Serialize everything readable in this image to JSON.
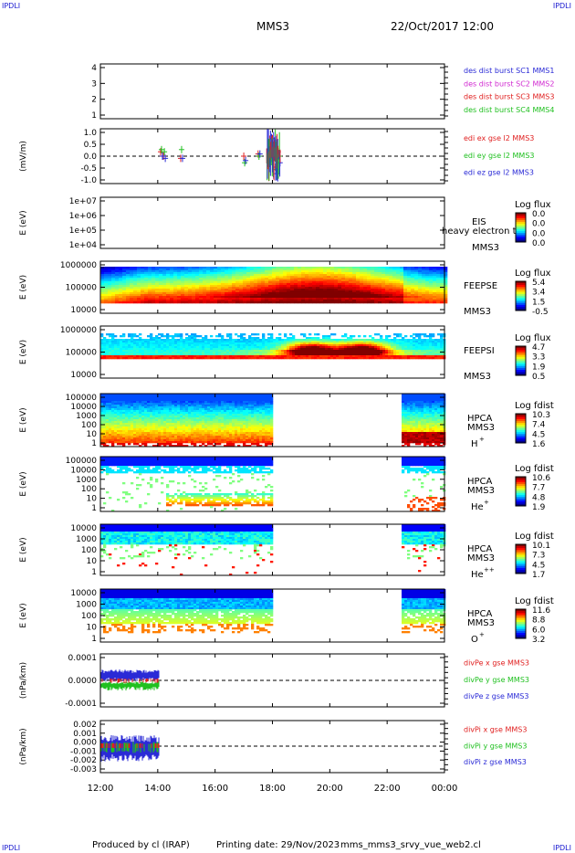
{
  "header": {
    "corner_left_top": "IPDLI",
    "corner_right_top": "IPDLI",
    "corner_left_bottom": "IPDLI",
    "corner_right_bottom": "IPDLI",
    "spacecraft": "MMS3",
    "datetime": "22/Oct/2017 12:00"
  },
  "footer": {
    "produced": "Produced by cl (IRAP)",
    "printing": "Printing date: 29/Nov/2023",
    "script": "mms_mms3_srvy_vue_web2.cl"
  },
  "time_axis": [
    "12:00",
    "14:00",
    "16:00",
    "18:00",
    "20:00",
    "22:00",
    "00:00"
  ],
  "panels": [
    {
      "id": "p1",
      "yticks": [
        "4",
        "3",
        "2",
        "1"
      ],
      "ylabel": "",
      "legend": [
        {
          "t": "des dist burst SC1 MMS1",
          "c": "#2a2ad6"
        },
        {
          "t": "des dist burst SC2 MMS2",
          "c": "#d12ad1"
        },
        {
          "t": "des dist burst SC3 MMS3",
          "c": "#e02020"
        },
        {
          "t": "des dist burst SC4 MMS4",
          "c": "#20c020"
        }
      ]
    },
    {
      "id": "p2",
      "yticks": [
        "1.0",
        "0.5",
        "0.0",
        "-0.5",
        "-1.0"
      ],
      "ylabel": "(mV/m)",
      "legend": [
        {
          "t": "edi ex gse l2 MMS3",
          "c": "#e02020"
        },
        {
          "t": "edi ey gse l2 MMS3",
          "c": "#20c020"
        },
        {
          "t": "edi ez gse l2 MMS3",
          "c": "#2a2ad6"
        }
      ]
    },
    {
      "id": "p3",
      "yticks": [
        "1e+07",
        "1e+06",
        "1e+05",
        "1e+04"
      ],
      "ylabel": "E (eV)",
      "inst": [
        "EIS",
        "MMS3"
      ],
      "overlap": "heavy electron to",
      "cb_title": "Log flux",
      "cb_vals": [
        "0.0",
        "0.0",
        "0.0",
        "0.0"
      ]
    },
    {
      "id": "p4",
      "yticks": [
        "1000000",
        "100000",
        "10000"
      ],
      "ylabel": "E (eV)",
      "inst": [
        "FEEPSE",
        "MMS3"
      ],
      "cb_title": "Log flux",
      "cb_vals": [
        "5.4",
        "3.4",
        "1.5",
        "-0.5"
      ]
    },
    {
      "id": "p5",
      "yticks": [
        "1000000",
        "100000",
        "10000"
      ],
      "ylabel": "E (eV)",
      "inst": [
        "FEEPSI",
        "MMS3"
      ],
      "cb_title": "Log flux",
      "cb_vals": [
        "4.7",
        "3.3",
        "1.9",
        "0.5"
      ]
    },
    {
      "id": "p6",
      "yticks": [
        "100000",
        "10000",
        "1000",
        "100",
        "10",
        "1"
      ],
      "ylabel": "E (eV)",
      "inst": [
        "HPCA",
        "MMS3",
        "H"
      ],
      "sup": "+",
      "cb_title": "Log fdist",
      "cb_vals": [
        "10.3",
        "7.4",
        "4.5",
        "1.6"
      ]
    },
    {
      "id": "p7",
      "yticks": [
        "100000",
        "10000",
        "1000",
        "100",
        "10",
        "1"
      ],
      "ylabel": "E (eV)",
      "inst": [
        "HPCA",
        "MMS3",
        "He"
      ],
      "sup": "+",
      "cb_title": "Log fdist",
      "cb_vals": [
        "10.6",
        "7.7",
        "4.8",
        "1.9"
      ]
    },
    {
      "id": "p8",
      "yticks": [
        "10000",
        "1000",
        "100",
        "10",
        "1"
      ],
      "ylabel": "E (eV)",
      "inst": [
        "HPCA",
        "MMS3",
        "He"
      ],
      "sup": "++",
      "cb_title": "Log fdist",
      "cb_vals": [
        "10.1",
        "7.3",
        "4.5",
        "1.7"
      ]
    },
    {
      "id": "p9",
      "yticks": [
        "10000",
        "1000",
        "100",
        "10",
        "1"
      ],
      "ylabel": "E (eV)",
      "inst": [
        "HPCA",
        "MMS3",
        "O"
      ],
      "sup": "+",
      "cb_title": "Log fdist",
      "cb_vals": [
        "11.6",
        "8.8",
        "6.0",
        "3.2"
      ]
    },
    {
      "id": "p10",
      "yticks": [
        "0.0001",
        "0.0000",
        "-0.0001"
      ],
      "ylabel": "(nPa/km)",
      "legend": [
        {
          "t": "divPe x gse MMS3",
          "c": "#e02020"
        },
        {
          "t": "divPe y gse MMS3",
          "c": "#20c020"
        },
        {
          "t": "divPe z gse MMS3",
          "c": "#2a2ad6"
        }
      ]
    },
    {
      "id": "p11",
      "yticks": [
        "0.002",
        "0.001",
        "0.000",
        "-0.001",
        "-0.002",
        "-0.003"
      ],
      "ylabel": "(nPa/km)",
      "legend": [
        {
          "t": "divPi x gse MMS3",
          "c": "#e02020"
        },
        {
          "t": "divPi y gse MMS3",
          "c": "#20c020"
        },
        {
          "t": "divPi z gse MMS3",
          "c": "#2a2ad6"
        }
      ]
    }
  ],
  "chart_data": {
    "type": "heatmap",
    "x_range": [
      "12:00",
      "00:00"
    ],
    "series_efield": {
      "x_hours": [
        14.1,
        14.2,
        14.8,
        17.0,
        17.5,
        17.9,
        18.0,
        18.1,
        18.2
      ],
      "ex": [
        0.2,
        0.0,
        -0.1,
        0.0,
        0.1,
        0.3,
        0.8,
        -0.5,
        0.2
      ],
      "ey": [
        0.3,
        0.2,
        0.3,
        -0.3,
        0.0,
        0.1,
        0.5,
        -0.6,
        0.0
      ],
      "ez": [
        0.0,
        -0.1,
        -0.1,
        -0.2,
        0.1,
        -0.1,
        0.3,
        -0.8,
        -0.3
      ]
    },
    "hpca_data_gap": [
      "18:00",
      "22:30"
    ],
    "divpe_range": [
      "12:00",
      "14:00"
    ],
    "divpi_range": [
      "12:00",
      "14:00"
    ]
  }
}
